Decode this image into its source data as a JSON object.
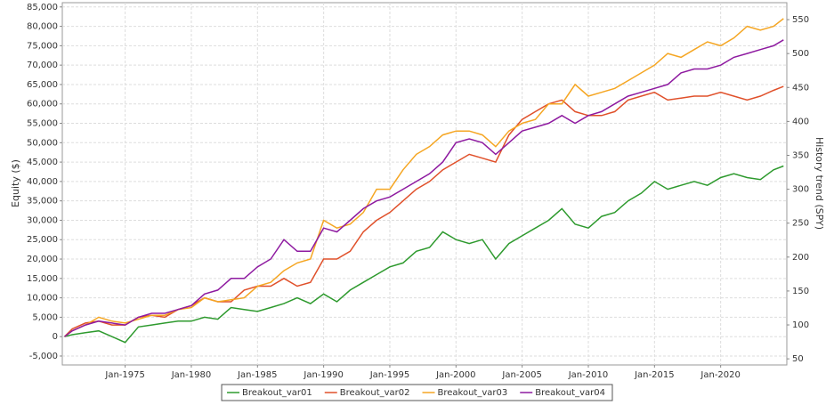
{
  "chart_data": {
    "type": "line",
    "y_label": "Equity ($)",
    "y2_label": "History trend (SPY)",
    "x": [
      "1970-06",
      "1971-01",
      "1972-01",
      "1973-01",
      "1974-01",
      "1975-01",
      "1976-01",
      "1977-01",
      "1978-01",
      "1979-01",
      "1980-01",
      "1981-01",
      "1982-01",
      "1983-01",
      "1984-01",
      "1985-01",
      "1986-01",
      "1987-01",
      "1988-01",
      "1989-01",
      "1990-01",
      "1991-01",
      "1992-01",
      "1993-01",
      "1994-01",
      "1995-01",
      "1996-01",
      "1997-01",
      "1998-01",
      "1999-01",
      "2000-01",
      "2001-01",
      "2002-01",
      "2003-01",
      "2004-01",
      "2005-01",
      "2006-01",
      "2007-01",
      "2008-01",
      "2009-01",
      "2010-01",
      "2011-01",
      "2012-01",
      "2013-01",
      "2014-01",
      "2015-01",
      "2016-01",
      "2017-01",
      "2018-01",
      "2019-01",
      "2020-01",
      "2021-01",
      "2022-01",
      "2023-01",
      "2024-01",
      "2024-10"
    ],
    "series": [
      {
        "name": "Breakout_var01",
        "color": "#2e9a2e",
        "values": [
          0,
          500,
          1000,
          1500,
          0,
          -1500,
          2500,
          3000,
          3500,
          4000,
          4000,
          5000,
          4500,
          7500,
          7000,
          6500,
          7500,
          8500,
          10000,
          8500,
          11000,
          9000,
          12000,
          14000,
          16000,
          18000,
          19000,
          22000,
          23000,
          27000,
          25000,
          24000,
          25000,
          20000,
          24000,
          26000,
          28000,
          30000,
          33000,
          29000,
          28000,
          31000,
          32000,
          35000,
          37000,
          40000,
          38000,
          39000,
          40000,
          39000,
          41000,
          42000,
          41000,
          40500,
          43000,
          44000
        ]
      },
      {
        "name": "Breakout_var02",
        "color": "#e0502a",
        "values": [
          0,
          2000,
          3500,
          4000,
          3000,
          3000,
          5000,
          5500,
          5000,
          7000,
          8000,
          10000,
          9000,
          9000,
          12000,
          13000,
          13000,
          15000,
          13000,
          14000,
          20000,
          20000,
          22000,
          27000,
          30000,
          32000,
          35000,
          38000,
          40000,
          43000,
          45000,
          47000,
          46000,
          45000,
          52000,
          56000,
          58000,
          60000,
          61000,
          58000,
          57000,
          57000,
          58000,
          61000,
          62000,
          63000,
          61000,
          61500,
          62000,
          62000,
          63000,
          62000,
          61000,
          62000,
          63500,
          64500
        ]
      },
      {
        "name": "Breakout_var03",
        "color": "#f5a623",
        "values": [
          0,
          1500,
          3000,
          5000,
          4000,
          3500,
          4500,
          5500,
          5500,
          7000,
          7500,
          10000,
          9000,
          9500,
          10000,
          13000,
          14000,
          17000,
          19000,
          20000,
          30000,
          28000,
          29000,
          32000,
          38000,
          38000,
          43000,
          47000,
          49000,
          52000,
          53000,
          53000,
          52000,
          49000,
          53000,
          55000,
          56000,
          60000,
          60000,
          65000,
          62000,
          63000,
          64000,
          66000,
          68000,
          70000,
          73000,
          72000,
          74000,
          76000,
          75000,
          77000,
          80000,
          79000,
          80000,
          82000
        ]
      },
      {
        "name": "Breakout_var04",
        "color": "#8e1aa0",
        "values": [
          0,
          1500,
          3000,
          4000,
          3500,
          3000,
          5000,
          6000,
          6000,
          7000,
          8000,
          11000,
          12000,
          15000,
          15000,
          18000,
          20000,
          25000,
          22000,
          22000,
          28000,
          27000,
          30000,
          33000,
          35000,
          36000,
          38000,
          40000,
          42000,
          45000,
          50000,
          51000,
          50000,
          47000,
          50000,
          53000,
          54000,
          55000,
          57000,
          55000,
          57000,
          58000,
          60000,
          62000,
          63000,
          64000,
          65000,
          68000,
          69000,
          69000,
          70000,
          72000,
          73000,
          74000,
          75000,
          76500
        ]
      }
    ],
    "xlim": [
      "1970-04",
      "2025-01"
    ],
    "xticks": [
      {
        "value": "1975-01",
        "label": "Jan-1975"
      },
      {
        "value": "1980-01",
        "label": "Jan-1980"
      },
      {
        "value": "1985-01",
        "label": "Jan-1985"
      },
      {
        "value": "1990-01",
        "label": "Jan-1990"
      },
      {
        "value": "1995-01",
        "label": "Jan-1995"
      },
      {
        "value": "2000-01",
        "label": "Jan-2000"
      },
      {
        "value": "2005-01",
        "label": "Jan-2005"
      },
      {
        "value": "2010-01",
        "label": "Jan-2010"
      },
      {
        "value": "2015-01",
        "label": "Jan-2015"
      },
      {
        "value": "2020-01",
        "label": "Jan-2020"
      }
    ],
    "ylim": [
      -7300,
      86100
    ],
    "yticks": [
      {
        "value": -5000,
        "label": "-5,000"
      },
      0,
      {
        "value": 5000,
        "label": "5,000"
      },
      {
        "value": 10000,
        "label": "10,000"
      },
      {
        "value": 15000,
        "label": "15,000"
      },
      {
        "value": 20000,
        "label": "20,000"
      },
      {
        "value": 25000,
        "label": "25,000"
      },
      {
        "value": 30000,
        "label": "30,000"
      },
      {
        "value": 35000,
        "label": "35,000"
      },
      {
        "value": 40000,
        "label": "40,000"
      },
      {
        "value": 45000,
        "label": "45,000"
      },
      {
        "value": 50000,
        "label": "50,000"
      },
      {
        "value": 55000,
        "label": "55,000"
      },
      {
        "value": 60000,
        "label": "60,000"
      },
      {
        "value": 65000,
        "label": "65,000"
      },
      {
        "value": 70000,
        "label": "70,000"
      },
      {
        "value": 75000,
        "label": "75,000"
      },
      {
        "value": 80000,
        "label": "80,000"
      },
      {
        "value": 85000,
        "label": "85,000"
      }
    ],
    "y2lim": [
      41,
      575
    ],
    "y2ticks": [
      50,
      100,
      150,
      200,
      250,
      300,
      350,
      400,
      450,
      500,
      550
    ],
    "grid": true,
    "legend": "bottom"
  }
}
